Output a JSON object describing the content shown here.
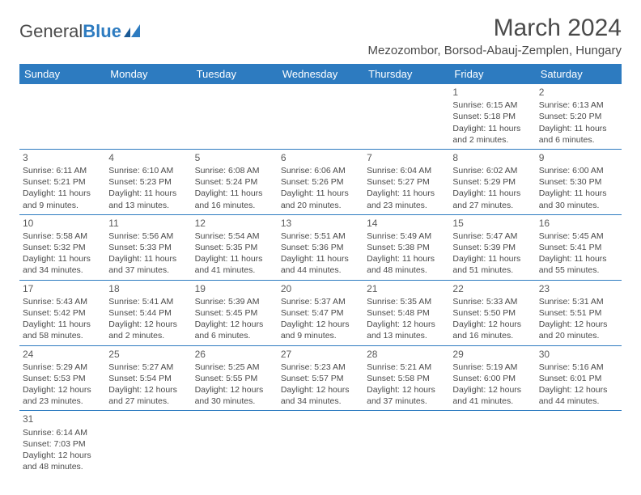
{
  "logo": {
    "text1": "General",
    "text2": "Blue"
  },
  "title": "March 2024",
  "location": "Mezozombor, Borsod-Abauj-Zemplen, Hungary",
  "colors": {
    "header_bg": "#2d7bc0",
    "header_fg": "#ffffff",
    "border": "#2d7bc0",
    "text": "#4a4a4a",
    "bg": "#ffffff"
  },
  "weekdays": [
    "Sunday",
    "Monday",
    "Tuesday",
    "Wednesday",
    "Thursday",
    "Friday",
    "Saturday"
  ],
  "weeks": [
    [
      null,
      null,
      null,
      null,
      null,
      {
        "n": "1",
        "sr": "Sunrise: 6:15 AM",
        "ss": "Sunset: 5:18 PM",
        "d1": "Daylight: 11 hours",
        "d2": "and 2 minutes."
      },
      {
        "n": "2",
        "sr": "Sunrise: 6:13 AM",
        "ss": "Sunset: 5:20 PM",
        "d1": "Daylight: 11 hours",
        "d2": "and 6 minutes."
      }
    ],
    [
      {
        "n": "3",
        "sr": "Sunrise: 6:11 AM",
        "ss": "Sunset: 5:21 PM",
        "d1": "Daylight: 11 hours",
        "d2": "and 9 minutes."
      },
      {
        "n": "4",
        "sr": "Sunrise: 6:10 AM",
        "ss": "Sunset: 5:23 PM",
        "d1": "Daylight: 11 hours",
        "d2": "and 13 minutes."
      },
      {
        "n": "5",
        "sr": "Sunrise: 6:08 AM",
        "ss": "Sunset: 5:24 PM",
        "d1": "Daylight: 11 hours",
        "d2": "and 16 minutes."
      },
      {
        "n": "6",
        "sr": "Sunrise: 6:06 AM",
        "ss": "Sunset: 5:26 PM",
        "d1": "Daylight: 11 hours",
        "d2": "and 20 minutes."
      },
      {
        "n": "7",
        "sr": "Sunrise: 6:04 AM",
        "ss": "Sunset: 5:27 PM",
        "d1": "Daylight: 11 hours",
        "d2": "and 23 minutes."
      },
      {
        "n": "8",
        "sr": "Sunrise: 6:02 AM",
        "ss": "Sunset: 5:29 PM",
        "d1": "Daylight: 11 hours",
        "d2": "and 27 minutes."
      },
      {
        "n": "9",
        "sr": "Sunrise: 6:00 AM",
        "ss": "Sunset: 5:30 PM",
        "d1": "Daylight: 11 hours",
        "d2": "and 30 minutes."
      }
    ],
    [
      {
        "n": "10",
        "sr": "Sunrise: 5:58 AM",
        "ss": "Sunset: 5:32 PM",
        "d1": "Daylight: 11 hours",
        "d2": "and 34 minutes."
      },
      {
        "n": "11",
        "sr": "Sunrise: 5:56 AM",
        "ss": "Sunset: 5:33 PM",
        "d1": "Daylight: 11 hours",
        "d2": "and 37 minutes."
      },
      {
        "n": "12",
        "sr": "Sunrise: 5:54 AM",
        "ss": "Sunset: 5:35 PM",
        "d1": "Daylight: 11 hours",
        "d2": "and 41 minutes."
      },
      {
        "n": "13",
        "sr": "Sunrise: 5:51 AM",
        "ss": "Sunset: 5:36 PM",
        "d1": "Daylight: 11 hours",
        "d2": "and 44 minutes."
      },
      {
        "n": "14",
        "sr": "Sunrise: 5:49 AM",
        "ss": "Sunset: 5:38 PM",
        "d1": "Daylight: 11 hours",
        "d2": "and 48 minutes."
      },
      {
        "n": "15",
        "sr": "Sunrise: 5:47 AM",
        "ss": "Sunset: 5:39 PM",
        "d1": "Daylight: 11 hours",
        "d2": "and 51 minutes."
      },
      {
        "n": "16",
        "sr": "Sunrise: 5:45 AM",
        "ss": "Sunset: 5:41 PM",
        "d1": "Daylight: 11 hours",
        "d2": "and 55 minutes."
      }
    ],
    [
      {
        "n": "17",
        "sr": "Sunrise: 5:43 AM",
        "ss": "Sunset: 5:42 PM",
        "d1": "Daylight: 11 hours",
        "d2": "and 58 minutes."
      },
      {
        "n": "18",
        "sr": "Sunrise: 5:41 AM",
        "ss": "Sunset: 5:44 PM",
        "d1": "Daylight: 12 hours",
        "d2": "and 2 minutes."
      },
      {
        "n": "19",
        "sr": "Sunrise: 5:39 AM",
        "ss": "Sunset: 5:45 PM",
        "d1": "Daylight: 12 hours",
        "d2": "and 6 minutes."
      },
      {
        "n": "20",
        "sr": "Sunrise: 5:37 AM",
        "ss": "Sunset: 5:47 PM",
        "d1": "Daylight: 12 hours",
        "d2": "and 9 minutes."
      },
      {
        "n": "21",
        "sr": "Sunrise: 5:35 AM",
        "ss": "Sunset: 5:48 PM",
        "d1": "Daylight: 12 hours",
        "d2": "and 13 minutes."
      },
      {
        "n": "22",
        "sr": "Sunrise: 5:33 AM",
        "ss": "Sunset: 5:50 PM",
        "d1": "Daylight: 12 hours",
        "d2": "and 16 minutes."
      },
      {
        "n": "23",
        "sr": "Sunrise: 5:31 AM",
        "ss": "Sunset: 5:51 PM",
        "d1": "Daylight: 12 hours",
        "d2": "and 20 minutes."
      }
    ],
    [
      {
        "n": "24",
        "sr": "Sunrise: 5:29 AM",
        "ss": "Sunset: 5:53 PM",
        "d1": "Daylight: 12 hours",
        "d2": "and 23 minutes."
      },
      {
        "n": "25",
        "sr": "Sunrise: 5:27 AM",
        "ss": "Sunset: 5:54 PM",
        "d1": "Daylight: 12 hours",
        "d2": "and 27 minutes."
      },
      {
        "n": "26",
        "sr": "Sunrise: 5:25 AM",
        "ss": "Sunset: 5:55 PM",
        "d1": "Daylight: 12 hours",
        "d2": "and 30 minutes."
      },
      {
        "n": "27",
        "sr": "Sunrise: 5:23 AM",
        "ss": "Sunset: 5:57 PM",
        "d1": "Daylight: 12 hours",
        "d2": "and 34 minutes."
      },
      {
        "n": "28",
        "sr": "Sunrise: 5:21 AM",
        "ss": "Sunset: 5:58 PM",
        "d1": "Daylight: 12 hours",
        "d2": "and 37 minutes."
      },
      {
        "n": "29",
        "sr": "Sunrise: 5:19 AM",
        "ss": "Sunset: 6:00 PM",
        "d1": "Daylight: 12 hours",
        "d2": "and 41 minutes."
      },
      {
        "n": "30",
        "sr": "Sunrise: 5:16 AM",
        "ss": "Sunset: 6:01 PM",
        "d1": "Daylight: 12 hours",
        "d2": "and 44 minutes."
      }
    ],
    [
      {
        "n": "31",
        "sr": "Sunrise: 6:14 AM",
        "ss": "Sunset: 7:03 PM",
        "d1": "Daylight: 12 hours",
        "d2": "and 48 minutes."
      },
      null,
      null,
      null,
      null,
      null,
      null
    ]
  ]
}
